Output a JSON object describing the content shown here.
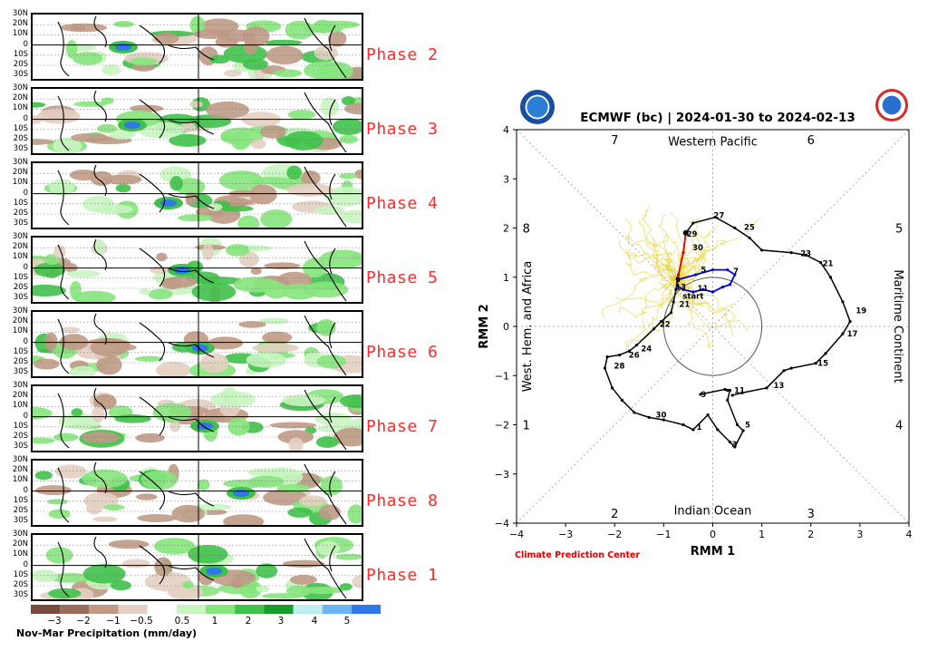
{
  "composites": {
    "lat_labels": [
      "30N",
      "20N",
      "10N",
      "0",
      "10S",
      "20S",
      "30S"
    ],
    "phases": [
      {
        "label": "Phase 2"
      },
      {
        "label": "Phase 3"
      },
      {
        "label": "Phase 4"
      },
      {
        "label": "Phase 5"
      },
      {
        "label": "Phase 6"
      },
      {
        "label": "Phase 7"
      },
      {
        "label": "Phase 8"
      },
      {
        "label": "Phase 1"
      }
    ],
    "colorbar": {
      "ticks": [
        "−3",
        "−2",
        "−1",
        "−0.5",
        "0.5",
        "1",
        "2",
        "3",
        "4",
        "5"
      ],
      "colors": [
        "#7b4a3e",
        "#9a6a5a",
        "#c09a86",
        "#e4cfc2",
        "#ffffff",
        "#c8f4c0",
        "#86e67c",
        "#3fc24a",
        "#189c2c",
        "#bceef0",
        "#6cb4f0",
        "#2e78e8"
      ],
      "label": "Nov-Mar Precipitation (mm/day)"
    }
  },
  "chart_data": {
    "type": "line",
    "title": "ECMWF (bc) | 2024-01-30 to 2024-02-13",
    "xlabel": "RMM 1",
    "ylabel": "RMM 2",
    "xlim": [
      -4,
      4
    ],
    "ylim": [
      -4,
      4
    ],
    "xticks": [
      "−4",
      "−3",
      "−2",
      "−1",
      "0",
      "1",
      "2",
      "3",
      "4"
    ],
    "yticks": [
      "−4",
      "−3",
      "−2",
      "−1",
      "0",
      "1",
      "2",
      "3",
      "4"
    ],
    "regions": {
      "top": "Western Pacific",
      "bottom": "Indian Ocean",
      "left": "West. Hem. and Africa",
      "right": "Maritime Continent"
    },
    "octants": [
      {
        "label": "7",
        "pos": [
          -2.0,
          3.8
        ]
      },
      {
        "label": "6",
        "pos": [
          2.0,
          3.8
        ]
      },
      {
        "label": "5",
        "pos": [
          3.8,
          2.0
        ]
      },
      {
        "label": "4",
        "pos": [
          3.8,
          -2.0
        ]
      },
      {
        "label": "3",
        "pos": [
          2.0,
          -3.8
        ]
      },
      {
        "label": "2",
        "pos": [
          -2.0,
          -3.8
        ]
      },
      {
        "label": "1",
        "pos": [
          -3.8,
          -2.0
        ]
      },
      {
        "label": "8",
        "pos": [
          -3.8,
          2.0
        ]
      }
    ],
    "series": [
      {
        "name": "observed",
        "color": "#000000",
        "points": [
          [
            -0.25,
            -1.38
          ],
          [
            0.25,
            -1.28
          ],
          [
            0.3,
            -1.3
          ],
          [
            0.35,
            -1.3
          ],
          [
            0.3,
            -1.5
          ],
          [
            0.5,
            -2.0
          ],
          [
            0.62,
            -2.12
          ],
          [
            0.45,
            -2.45
          ],
          [
            0.35,
            -2.35
          ],
          [
            0.1,
            -2.1
          ],
          [
            -0.1,
            -1.8
          ],
          [
            -0.4,
            -2.1
          ],
          [
            -0.6,
            -2.0
          ],
          [
            -1.0,
            -1.9
          ],
          [
            -1.3,
            -1.85
          ],
          [
            -1.6,
            -1.75
          ],
          [
            -1.85,
            -1.5
          ],
          [
            -2.05,
            -1.25
          ],
          [
            -2.2,
            -0.85
          ],
          [
            -2.15,
            -0.62
          ],
          [
            -1.9,
            -0.58
          ],
          [
            -1.7,
            -0.5
          ],
          [
            -1.55,
            -0.38
          ],
          [
            -1.2,
            -0.05
          ],
          [
            -1.05,
            0.1
          ],
          [
            -0.85,
            0.28
          ],
          [
            -0.8,
            0.5
          ],
          [
            -0.75,
            0.75
          ],
          [
            -0.7,
            1.05
          ],
          [
            -0.6,
            1.5
          ],
          [
            -0.55,
            1.9
          ],
          [
            -0.4,
            2.1
          ],
          [
            0.05,
            2.22
          ],
          [
            0.45,
            2.0
          ],
          [
            0.75,
            1.8
          ],
          [
            1.0,
            1.55
          ],
          [
            1.6,
            1.5
          ],
          [
            1.9,
            1.45
          ],
          [
            2.2,
            1.3
          ],
          [
            2.4,
            1.0
          ],
          [
            2.65,
            0.5
          ],
          [
            2.8,
            0.1
          ],
          [
            2.65,
            -0.15
          ],
          [
            2.3,
            -0.55
          ],
          [
            2.1,
            -0.75
          ],
          [
            1.6,
            -0.85
          ],
          [
            1.45,
            -0.9
          ],
          [
            1.1,
            -1.25
          ],
          [
            0.6,
            -1.35
          ],
          [
            0.4,
            -1.4
          ]
        ],
        "labels": [
          {
            "t": "27",
            "at": [
              -0.02,
              2.26
            ]
          },
          {
            "t": "25",
            "at": [
              0.6,
              2.02
            ]
          },
          {
            "t": "29",
            "at": [
              -0.57,
              1.88
            ]
          },
          {
            "t": "30",
            "at": [
              -0.45,
              1.6
            ]
          },
          {
            "t": "23",
            "at": [
              1.75,
              1.48
            ]
          },
          {
            "t": "21",
            "at": [
              2.2,
              1.28
            ]
          },
          {
            "t": "19",
            "at": [
              2.88,
              0.32
            ]
          },
          {
            "t": "17",
            "at": [
              2.7,
              -0.15
            ]
          },
          {
            "t": "15",
            "at": [
              2.1,
              -0.75
            ]
          },
          {
            "t": "13",
            "at": [
              1.2,
              -1.2
            ]
          },
          {
            "t": "11",
            "at": [
              0.4,
              -1.3
            ]
          },
          {
            "t": "9",
            "at": [
              -0.28,
              -1.38
            ]
          },
          {
            "t": "5",
            "at": [
              0.62,
              -2.0
            ]
          },
          {
            "t": "3",
            "at": [
              0.35,
              -2.4
            ]
          },
          {
            "t": "1",
            "at": [
              -0.37,
              -2.05
            ]
          },
          {
            "t": "30",
            "at": [
              -1.2,
              -1.8
            ]
          },
          {
            "t": "28",
            "at": [
              -2.05,
              -0.8
            ]
          },
          {
            "t": "26",
            "at": [
              -1.75,
              -0.58
            ]
          },
          {
            "t": "24",
            "at": [
              -1.5,
              -0.45
            ]
          },
          {
            "t": "22",
            "at": [
              -1.12,
              0.05
            ]
          },
          {
            "t": "21",
            "at": [
              -0.72,
              0.45
            ]
          }
        ]
      },
      {
        "name": "forecast-early",
        "color": "#e00000",
        "points": [
          [
            -0.55,
            1.9
          ],
          [
            -0.6,
            1.5
          ],
          [
            -0.7,
            1.05
          ],
          [
            -0.72,
            0.95
          ]
        ],
        "labels": []
      },
      {
        "name": "forecast-mean",
        "color": "#0000cc",
        "points": [
          [
            -0.72,
            0.95
          ],
          [
            -0.35,
            1.05
          ],
          [
            0.0,
            1.15
          ],
          [
            0.3,
            1.15
          ],
          [
            0.45,
            1.05
          ],
          [
            0.35,
            0.85
          ],
          [
            0.2,
            0.8
          ],
          [
            0.0,
            0.7
          ],
          [
            -0.2,
            0.75
          ],
          [
            -0.4,
            0.7
          ],
          [
            -0.6,
            0.75
          ],
          [
            -0.72,
            0.82
          ]
        ],
        "labels": [
          {
            "t": "9",
            "at": [
              -0.8,
              0.95
            ]
          },
          {
            "t": "5",
            "at": [
              -0.28,
              1.15
            ]
          },
          {
            "t": "7",
            "at": [
              0.38,
              1.12
            ]
          },
          {
            "t": "13",
            "at": [
              -0.8,
              0.8
            ]
          },
          {
            "t": "11",
            "at": [
              -0.35,
              0.77
            ]
          },
          {
            "t": "start",
            "at": [
              -0.65,
              0.62
            ]
          }
        ]
      }
    ]
  }
}
